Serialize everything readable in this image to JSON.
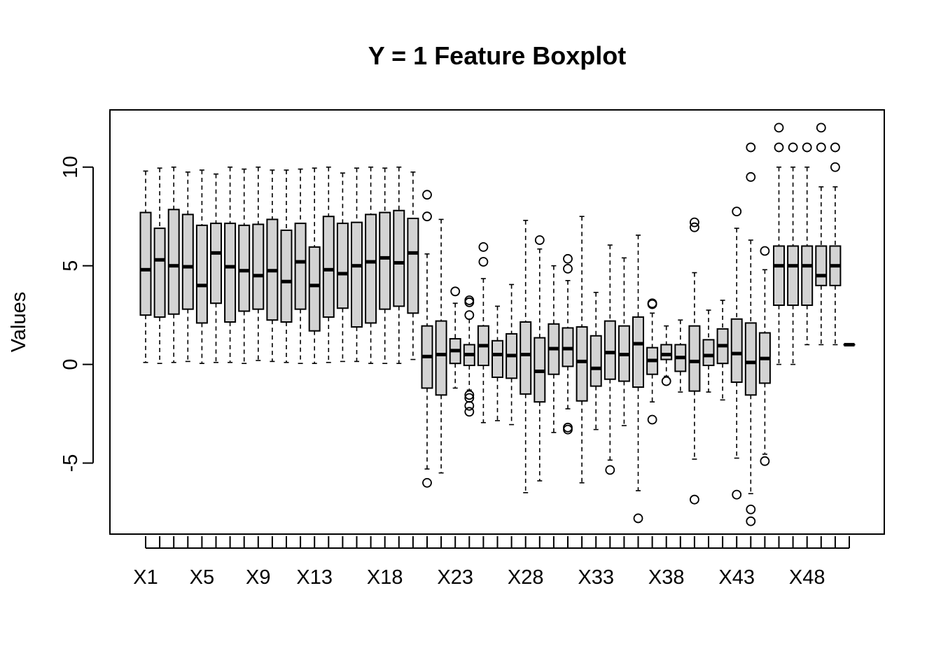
{
  "chart_data": {
    "type": "boxplot",
    "title": "Y = 1 Feature Boxplot",
    "xlabel": "",
    "ylabel": "Values",
    "ylim": [
      -8.6,
      12.9
    ],
    "yticks": [
      -5,
      0,
      5,
      10
    ],
    "grid": false,
    "legend": "none",
    "box_color": "#d3d3d3",
    "categories": [
      "X1",
      "X2",
      "X3",
      "X4",
      "X5",
      "X6",
      "X7",
      "X8",
      "X9",
      "X10",
      "X11",
      "X12",
      "X13",
      "X14",
      "X15",
      "X16",
      "X17",
      "X18",
      "X19",
      "X20",
      "X21",
      "X22",
      "X23",
      "X24",
      "X25",
      "X26",
      "X27",
      "X28",
      "X29",
      "X30",
      "X31",
      "X32",
      "X33",
      "X34",
      "X35",
      "X36",
      "X37",
      "X38",
      "X39",
      "X40",
      "X41",
      "X42",
      "X43",
      "X44",
      "X45",
      "X46",
      "X47",
      "X48",
      "X49",
      "X50",
      "X51"
    ],
    "x_tick_labels": [
      "X1",
      "X5",
      "X9",
      "X13",
      "X18",
      "X23",
      "X28",
      "X33",
      "X38",
      "X43",
      "X48"
    ],
    "boxes": [
      {
        "name": "X1",
        "min": 0.1,
        "q1": 2.5,
        "median": 4.8,
        "q3": 7.7,
        "max": 9.8,
        "outliers": []
      },
      {
        "name": "X2",
        "min": 0.05,
        "q1": 2.4,
        "median": 5.3,
        "q3": 6.9,
        "max": 9.95,
        "outliers": []
      },
      {
        "name": "X3",
        "min": 0.1,
        "q1": 2.55,
        "median": 5.0,
        "q3": 7.85,
        "max": 10.0,
        "outliers": []
      },
      {
        "name": "X4",
        "min": 0.15,
        "q1": 2.8,
        "median": 4.95,
        "q3": 7.6,
        "max": 9.75,
        "outliers": []
      },
      {
        "name": "X5",
        "min": 0.05,
        "q1": 2.1,
        "median": 4.0,
        "q3": 7.05,
        "max": 9.85,
        "outliers": []
      },
      {
        "name": "X6",
        "min": 0.1,
        "q1": 3.1,
        "median": 5.65,
        "q3": 7.15,
        "max": 9.65,
        "outliers": []
      },
      {
        "name": "X7",
        "min": 0.1,
        "q1": 2.15,
        "median": 4.95,
        "q3": 7.15,
        "max": 10.0,
        "outliers": []
      },
      {
        "name": "X8",
        "min": 0.05,
        "q1": 2.7,
        "median": 4.75,
        "q3": 7.05,
        "max": 9.9,
        "outliers": []
      },
      {
        "name": "X9",
        "min": 0.2,
        "q1": 2.8,
        "median": 4.5,
        "q3": 7.1,
        "max": 10.0,
        "outliers": []
      },
      {
        "name": "X10",
        "min": 0.15,
        "q1": 2.25,
        "median": 4.75,
        "q3": 7.35,
        "max": 9.85,
        "outliers": []
      },
      {
        "name": "X11",
        "min": 0.1,
        "q1": 2.15,
        "median": 4.2,
        "q3": 6.8,
        "max": 9.85,
        "outliers": []
      },
      {
        "name": "X12",
        "min": 0.05,
        "q1": 2.8,
        "median": 5.2,
        "q3": 7.15,
        "max": 9.9,
        "outliers": []
      },
      {
        "name": "X13",
        "min": 0.05,
        "q1": 1.7,
        "median": 4.0,
        "q3": 5.95,
        "max": 9.95,
        "outliers": []
      },
      {
        "name": "X14",
        "min": 0.1,
        "q1": 2.4,
        "median": 4.8,
        "q3": 7.5,
        "max": 10.0,
        "outliers": []
      },
      {
        "name": "X15",
        "min": 0.15,
        "q1": 2.85,
        "median": 4.6,
        "q3": 7.15,
        "max": 9.7,
        "outliers": []
      },
      {
        "name": "X16",
        "min": 0.15,
        "q1": 1.9,
        "median": 5.0,
        "q3": 7.2,
        "max": 9.95,
        "outliers": []
      },
      {
        "name": "X17",
        "min": 0.05,
        "q1": 2.1,
        "median": 5.2,
        "q3": 7.6,
        "max": 10.0,
        "outliers": []
      },
      {
        "name": "X18",
        "min": 0.05,
        "q1": 2.8,
        "median": 5.4,
        "q3": 7.7,
        "max": 9.95,
        "outliers": []
      },
      {
        "name": "X19",
        "min": 0.05,
        "q1": 2.95,
        "median": 5.15,
        "q3": 7.8,
        "max": 10.0,
        "outliers": []
      },
      {
        "name": "X20",
        "min": 0.25,
        "q1": 2.6,
        "median": 5.65,
        "q3": 7.4,
        "max": 9.75,
        "outliers": []
      },
      {
        "name": "X21",
        "min": -5.3,
        "q1": -1.2,
        "median": 0.4,
        "q3": 1.95,
        "max": 5.6,
        "outliers": [
          8.6,
          7.5,
          -6.0
        ]
      },
      {
        "name": "X22",
        "min": -5.5,
        "q1": -1.55,
        "median": 0.5,
        "q3": 2.2,
        "max": 7.35,
        "outliers": []
      },
      {
        "name": "X23",
        "min": -1.2,
        "q1": 0.05,
        "median": 0.7,
        "q3": 1.3,
        "max": 3.1,
        "outliers": [
          3.7
        ]
      },
      {
        "name": "X24",
        "min": -1.3,
        "q1": -0.05,
        "median": 0.5,
        "q3": 1.0,
        "max": 2.3,
        "outliers": [
          3.25,
          3.15,
          2.5,
          -1.55,
          -1.7,
          -2.1,
          -2.4
        ]
      },
      {
        "name": "X25",
        "min": -2.95,
        "q1": -0.05,
        "median": 0.95,
        "q3": 1.95,
        "max": 4.35,
        "outliers": [
          5.95,
          5.2
        ]
      },
      {
        "name": "X26",
        "min": -2.85,
        "q1": -0.65,
        "median": 0.5,
        "q3": 1.2,
        "max": 2.95,
        "outliers": []
      },
      {
        "name": "X27",
        "min": -3.05,
        "q1": -0.7,
        "median": 0.45,
        "q3": 1.55,
        "max": 4.05,
        "outliers": []
      },
      {
        "name": "X28",
        "min": -6.5,
        "q1": -1.5,
        "median": 0.5,
        "q3": 2.15,
        "max": 7.3,
        "outliers": []
      },
      {
        "name": "X29",
        "min": -5.9,
        "q1": -1.9,
        "median": -0.35,
        "q3": 1.35,
        "max": 5.85,
        "outliers": [
          6.3
        ]
      },
      {
        "name": "X30",
        "min": -3.45,
        "q1": -0.5,
        "median": 0.8,
        "q3": 2.05,
        "max": 5.0,
        "outliers": []
      },
      {
        "name": "X31",
        "min": -2.25,
        "q1": -0.1,
        "median": 0.8,
        "q3": 1.85,
        "max": 4.25,
        "outliers": [
          5.35,
          4.85,
          -3.2,
          -3.3
        ]
      },
      {
        "name": "X32",
        "min": -6.0,
        "q1": -1.85,
        "median": 0.15,
        "q3": 1.9,
        "max": 7.5,
        "outliers": []
      },
      {
        "name": "X33",
        "min": -3.3,
        "q1": -1.1,
        "median": -0.2,
        "q3": 1.45,
        "max": 3.65,
        "outliers": []
      },
      {
        "name": "X34",
        "min": -4.85,
        "q1": -0.75,
        "median": 0.6,
        "q3": 2.2,
        "max": 6.05,
        "outliers": [
          -5.35
        ]
      },
      {
        "name": "X35",
        "min": -3.1,
        "q1": -0.85,
        "median": 0.5,
        "q3": 1.95,
        "max": 5.4,
        "outliers": []
      },
      {
        "name": "X36",
        "min": -6.4,
        "q1": -1.15,
        "median": 1.05,
        "q3": 2.4,
        "max": 6.55,
        "outliers": [
          -7.8
        ]
      },
      {
        "name": "X37",
        "min": -1.9,
        "q1": -0.5,
        "median": 0.2,
        "q3": 0.85,
        "max": 2.6,
        "outliers": [
          3.05,
          3.1,
          -2.8
        ]
      },
      {
        "name": "X38",
        "min": -0.6,
        "q1": 0.25,
        "median": 0.5,
        "q3": 1.0,
        "max": 1.95,
        "outliers": [
          -0.85
        ]
      },
      {
        "name": "X39",
        "min": -1.4,
        "q1": -0.35,
        "median": 0.35,
        "q3": 1.0,
        "max": 2.25,
        "outliers": []
      },
      {
        "name": "X40",
        "min": -4.8,
        "q1": -1.35,
        "median": 0.15,
        "q3": 1.95,
        "max": 4.65,
        "outliers": [
          7.2,
          6.95,
          -6.85
        ]
      },
      {
        "name": "X41",
        "min": -1.4,
        "q1": -0.05,
        "median": 0.45,
        "q3": 1.25,
        "max": 2.75,
        "outliers": []
      },
      {
        "name": "X42",
        "min": -1.8,
        "q1": 0.05,
        "median": 0.95,
        "q3": 1.8,
        "max": 3.25,
        "outliers": []
      },
      {
        "name": "X43",
        "min": -4.75,
        "q1": -0.9,
        "median": 0.55,
        "q3": 2.3,
        "max": 6.9,
        "outliers": [
          7.75,
          -6.6
        ]
      },
      {
        "name": "X44",
        "min": -6.55,
        "q1": -1.55,
        "median": 0.1,
        "q3": 2.1,
        "max": 6.3,
        "outliers": [
          11.0,
          9.5,
          -7.35,
          -7.95
        ]
      },
      {
        "name": "X45",
        "min": -4.55,
        "q1": -0.95,
        "median": 0.3,
        "q3": 1.6,
        "max": 4.8,
        "outliers": [
          5.75,
          -4.9
        ]
      },
      {
        "name": "X46",
        "min": 0.0,
        "q1": 3.0,
        "median": 5.0,
        "q3": 6.0,
        "max": 10.0,
        "outliers": [
          12.0,
          11.0
        ]
      },
      {
        "name": "X47",
        "min": 0.0,
        "q1": 3.0,
        "median": 5.0,
        "q3": 6.0,
        "max": 10.0,
        "outliers": [
          11.0
        ]
      },
      {
        "name": "X48",
        "min": 1.0,
        "q1": 3.0,
        "median": 5.0,
        "q3": 6.0,
        "max": 10.0,
        "outliers": [
          11.0
        ]
      },
      {
        "name": "X49",
        "min": 1.0,
        "q1": 4.0,
        "median": 4.5,
        "q3": 6.0,
        "max": 9.0,
        "outliers": [
          12.0,
          11.0
        ]
      },
      {
        "name": "X50",
        "min": 1.0,
        "q1": 4.0,
        "median": 5.0,
        "q3": 6.0,
        "max": 9.0,
        "outliers": [
          11.0,
          10.0
        ]
      },
      {
        "name": "X51",
        "min": 1.0,
        "q1": 1.0,
        "median": 1.0,
        "q3": 1.0,
        "max": 1.0,
        "outliers": []
      }
    ]
  }
}
